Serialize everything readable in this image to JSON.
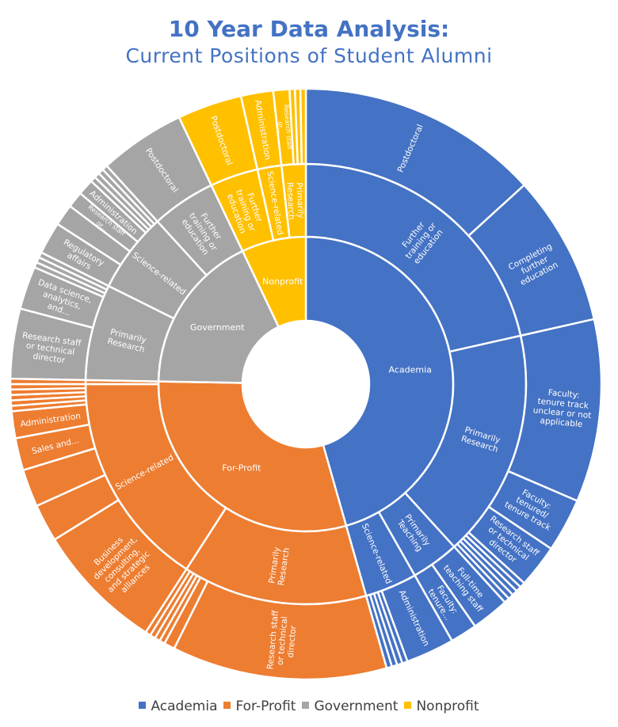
{
  "title": {
    "main": "10 Year Data Analysis",
    "colon": ":",
    "subtitle": "Current Positions of Student Alumni"
  },
  "colors": {
    "Academia": "#4472c4",
    "For-Profit": "#ed7d31",
    "Government": "#a5a5a5",
    "Nonprofit": "#ffc000"
  },
  "legend": [
    "Academia",
    "For-Profit",
    "Government",
    "Nonprofit"
  ],
  "chart_data": {
    "type": "sunburst",
    "levels": [
      "sector",
      "career type",
      "position"
    ],
    "children": [
      {
        "name": "Academia",
        "value": 155,
        "children": [
          {
            "name": "Further training or education",
            "value": 73,
            "children": [
              {
                "name": "Postdoctoral",
                "value": 45
              },
              {
                "name": "Completing further education",
                "value": 28
              }
            ]
          },
          {
            "name": "Primarily Research",
            "value": 57,
            "children": [
              {
                "name": "Faculty: tenure track unclear or not applicable",
                "value": 34
              },
              {
                "name": "Faculty: tenured/ tenure track",
                "value": 10
              },
              {
                "name": "Research staff or technical director",
                "value": 8
              },
              {
                "name": "",
                "value": 1
              },
              {
                "name": "",
                "value": 1
              },
              {
                "name": "",
                "value": 1
              },
              {
                "name": "",
                "value": 1
              },
              {
                "name": "",
                "value": 1
              }
            ]
          },
          {
            "name": "Primarily Teaching",
            "value": 12,
            "children": [
              {
                "name": "Full-time teaching staff",
                "value": 7
              },
              {
                "name": "Faculty: tenure...",
                "value": 5
              }
            ]
          },
          {
            "name": "Science-related",
            "value": 13,
            "children": [
              {
                "name": "Administration",
                "value": 9
              },
              {
                "name": "",
                "value": 1
              },
              {
                "name": "",
                "value": 1
              },
              {
                "name": "",
                "value": 1
              },
              {
                "name": "",
                "value": 1
              }
            ]
          }
        ]
      },
      {
        "name": "For-Profit",
        "value": 101,
        "children": [
          {
            "name": "Primarily Research",
            "value": 46,
            "children": [
              {
                "name": "Research staff or technical director",
                "value": 40
              },
              {
                "name": "",
                "value": 2
              },
              {
                "name": "",
                "value": 1
              },
              {
                "name": "",
                "value": 1
              },
              {
                "name": "",
                "value": 1
              },
              {
                "name": "",
                "value": 1
              }
            ]
          },
          {
            "name": "Science-related",
            "value": 54,
            "children": [
              {
                "name": "Business development, consulting, and strategic alliances",
                "value": 24
              },
              {
                "name": "",
                "value": 7
              },
              {
                "name": "",
                "value": 7
              },
              {
                "name": "Sales and...",
                "value": 6
              },
              {
                "name": "Administration",
                "value": 5
              },
              {
                "name": "",
                "value": 1
              },
              {
                "name": "",
                "value": 1
              },
              {
                "name": "",
                "value": 1
              },
              {
                "name": "",
                "value": 1
              },
              {
                "name": "",
                "value": 1
              }
            ]
          },
          {
            "name": "",
            "value": 1,
            "children": [
              {
                "name": "",
                "value": 1
              }
            ]
          }
        ]
      },
      {
        "name": "Government",
        "value": 60,
        "children": [
          {
            "name": "Primarily Research",
            "value": 24,
            "children": [
              {
                "name": "Research staff or technical director",
                "value": 13
              },
              {
                "name": "Data science, analytics, and...",
                "value": 8
              },
              {
                "name": "",
                "value": 1
              },
              {
                "name": "",
                "value": 1
              },
              {
                "name": "",
                "value": 1
              }
            ]
          },
          {
            "name": "Science-related",
            "value": 20,
            "children": [
              {
                "name": "Regulatory affairs",
                "value": 6
              },
              {
                "name": "",
                "value": 4
              },
              {
                "name": "Research staff or...",
                "value": 3
              },
              {
                "name": "Administration",
                "value": 3
              },
              {
                "name": "",
                "value": 1
              },
              {
                "name": "",
                "value": 1
              },
              {
                "name": "",
                "value": 1
              },
              {
                "name": "",
                "value": 1
              }
            ]
          },
          {
            "name": "Further training or education",
            "value": 16,
            "children": [
              {
                "name": "Postdoctoral",
                "value": 16
              }
            ]
          }
        ]
      },
      {
        "name": "Nonprofit",
        "value": 24,
        "children": [
          {
            "name": "Further training or education",
            "value": 12,
            "children": [
              {
                "name": "Postdoctoral",
                "value": 12
              }
            ]
          },
          {
            "name": "Science-related",
            "value": 6,
            "children": [
              {
                "name": "Administration",
                "value": 6
              }
            ]
          },
          {
            "name": "Primarily Research",
            "value": 6,
            "children": [
              {
                "name": "Research staff or...",
                "value": 3
              },
              {
                "name": "",
                "value": 1
              },
              {
                "name": "",
                "value": 1
              },
              {
                "name": "",
                "value": 1
              }
            ]
          }
        ]
      }
    ]
  }
}
